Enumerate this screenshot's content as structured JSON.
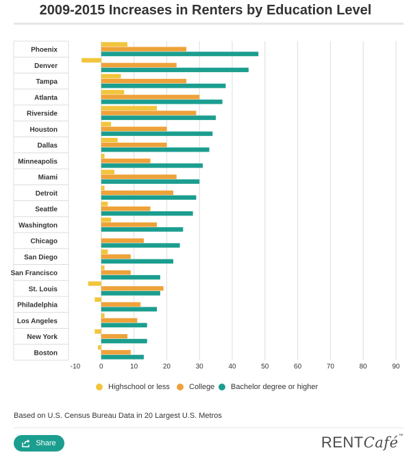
{
  "title": "2009-2015 Increases in Renters by Education Level",
  "source": "Based on U.S. Census Bureau Data in 20 Largest U.S. Metros",
  "share_label": "Share",
  "logo": {
    "main": "RENT",
    "accent": "Café",
    "tm": "™"
  },
  "legend": [
    {
      "label": "Highschool or less",
      "color": "#f2c53d"
    },
    {
      "label": "College",
      "color": "#eea23a"
    },
    {
      "label": "Bachelor degree or higher",
      "color": "#1b9e8f"
    }
  ],
  "chart_data": {
    "type": "bar",
    "orientation": "horizontal",
    "categories": [
      "Phoenix",
      "Denver",
      "Tampa",
      "Atlanta",
      "Riverside",
      "Houston",
      "Dallas",
      "Minneapolis",
      "Miami",
      "Detroit",
      "Seattle",
      "Washington",
      "Chicago",
      "San Diego",
      "San Francisco",
      "St. Louis",
      "Philadelphia",
      "Los Angeles",
      "New York",
      "Boston"
    ],
    "series": [
      {
        "name": "Highschool or less",
        "color": "#f2c53d",
        "values": [
          8,
          -6,
          6,
          7,
          17,
          3,
          5,
          1,
          4,
          1,
          2,
          3,
          0,
          2,
          1,
          -4,
          -2,
          1,
          -2,
          -1
        ]
      },
      {
        "name": "College",
        "color": "#eea23a",
        "values": [
          26,
          23,
          26,
          30,
          29,
          20,
          20,
          15,
          23,
          22,
          15,
          17,
          13,
          9,
          9,
          19,
          12,
          11,
          8,
          9
        ]
      },
      {
        "name": "Bachelor degree or higher",
        "color": "#1b9e8f",
        "values": [
          48,
          45,
          38,
          37,
          35,
          34,
          33,
          31,
          30,
          29,
          28,
          25,
          24,
          22,
          18,
          18,
          17,
          14,
          14,
          13
        ]
      }
    ],
    "xlim": [
      -10,
      90
    ],
    "xticks": [
      -10,
      0,
      10,
      20,
      30,
      40,
      50,
      60,
      70,
      80,
      90
    ],
    "grid": true,
    "legend_position": "bottom"
  }
}
